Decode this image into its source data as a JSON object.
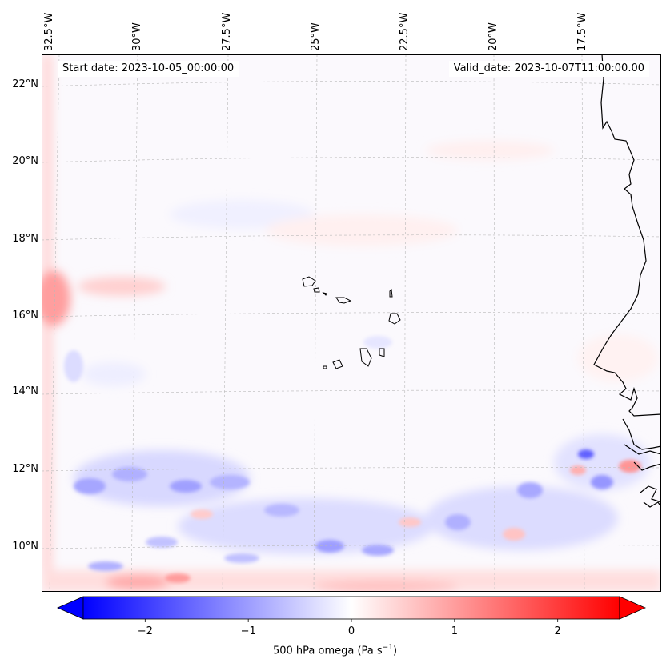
{
  "map": {
    "start_date": "Start date: 2023-10-05_00:00:00",
    "valid_date": "Valid_date: 2023-10-07T11:00:00.00",
    "lon_labels": [
      "32.5°W",
      "30°W",
      "27.5°W",
      "25°W",
      "22.5°W",
      "20°W",
      "17.5°W"
    ],
    "lat_labels": [
      "22°N",
      "20°N",
      "18°N",
      "16°N",
      "14°N",
      "12°N",
      "10°N"
    ],
    "field": "500 hPa omega",
    "region": "Cape Verde and West African coast"
  },
  "colorbar": {
    "label_main": "500 hPa omega (Pa s",
    "label_exp": "−1",
    "label_close": ")",
    "ticks": [
      "−2",
      "−1",
      "0",
      "1",
      "2"
    ],
    "min": -2.6,
    "max": 2.6,
    "colors": {
      "negative": "#0000ff",
      "zero": "#ffffff",
      "positive": "#ff0000"
    }
  }
}
